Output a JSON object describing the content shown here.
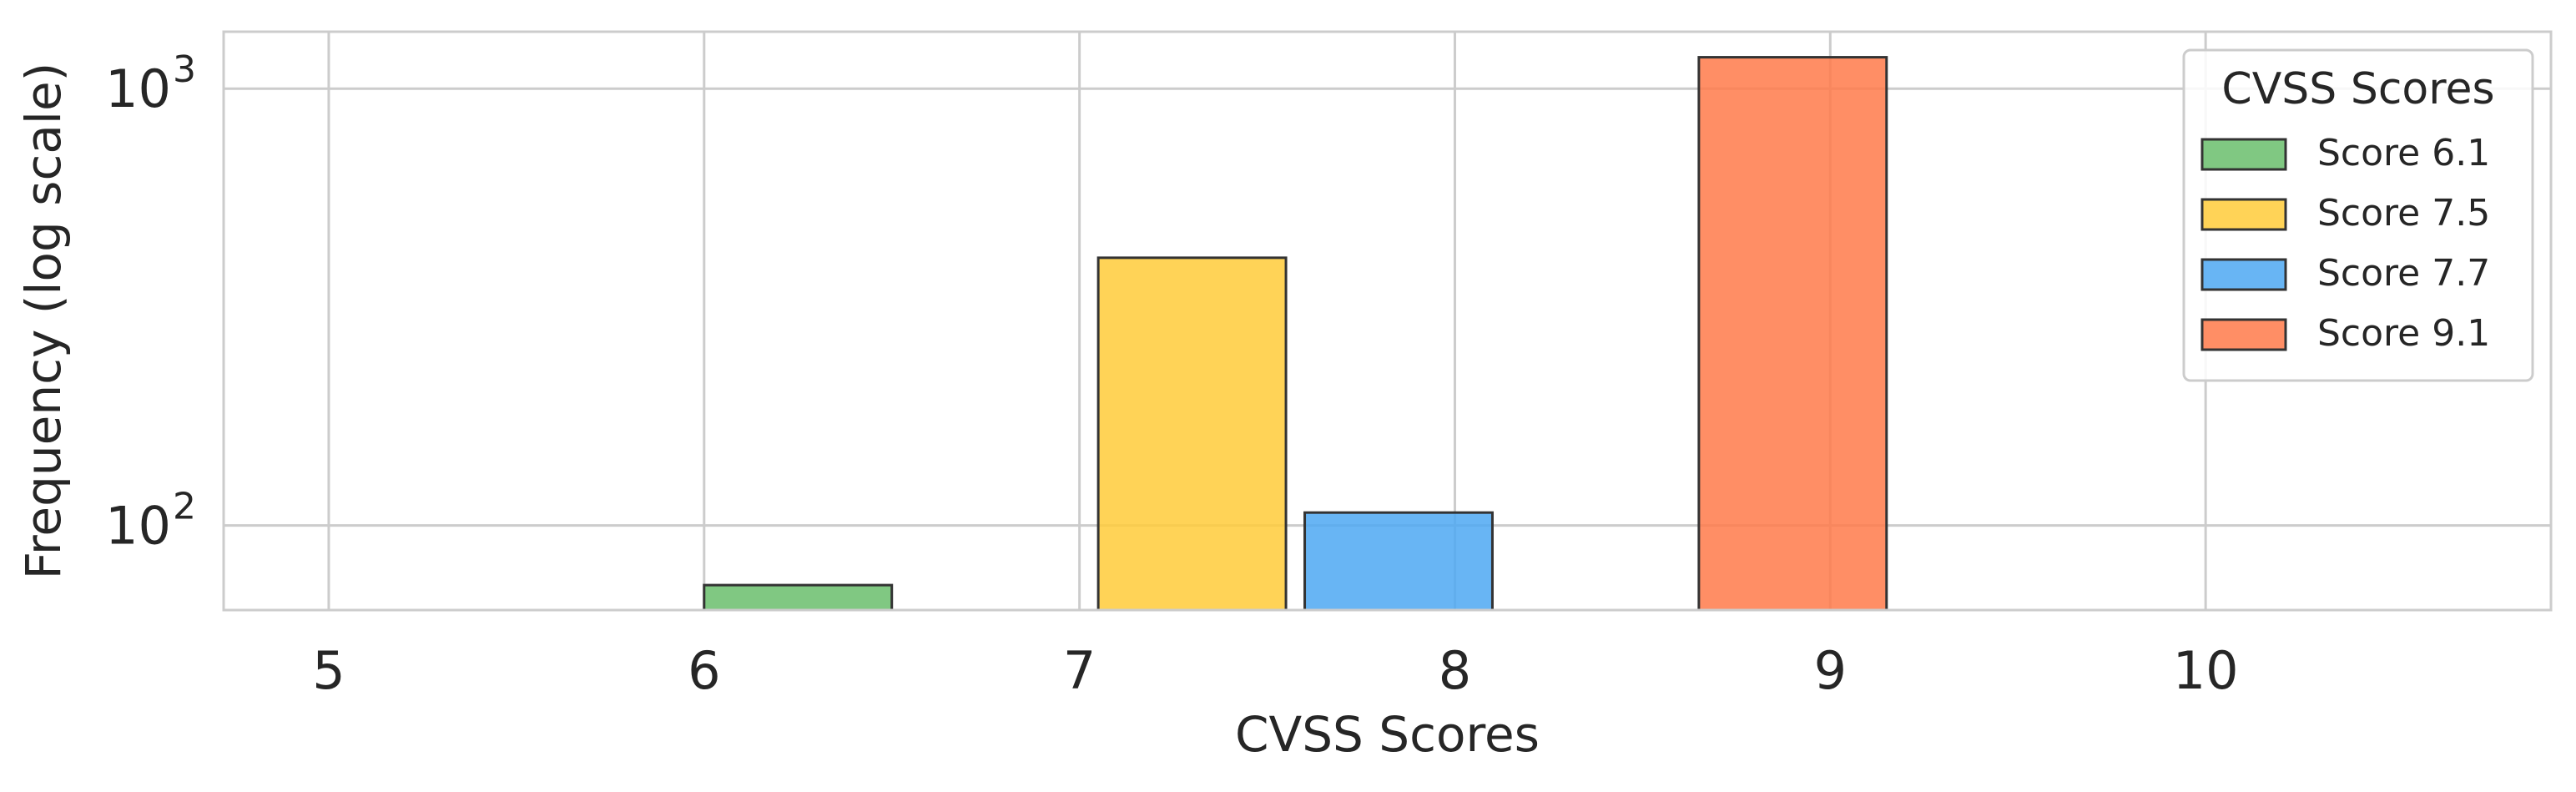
{
  "chart_data": {
    "type": "bar",
    "xlabel": "CVSS Scores",
    "ylabel": "Frequency (log scale)",
    "y_scale": "log",
    "xlim": [
      4.72,
      10.92
    ],
    "ylim": [
      64,
      1350
    ],
    "x_ticks": [
      "5",
      "6",
      "7",
      "8",
      "9",
      "10"
    ],
    "y_ticks": [
      {
        "value": 100,
        "base": "10",
        "exp": "2"
      },
      {
        "value": 1000,
        "base": "10",
        "exp": "3"
      }
    ],
    "grid": true,
    "series": [
      {
        "name": "Score 6.1",
        "x": 6.25,
        "value": 73,
        "color": "#6ABE6C"
      },
      {
        "name": "Score 7.5",
        "x": 7.3,
        "value": 410,
        "color": "#FFCB3A"
      },
      {
        "name": "Score 7.7",
        "x": 7.85,
        "value": 107,
        "color": "#4DA8F2"
      },
      {
        "name": "Score 9.1",
        "x": 8.9,
        "value": 1180,
        "color": "#FF7A4A"
      }
    ],
    "bar_width": 0.5,
    "legend": {
      "title": "CVSS Scores",
      "placement": "top-right"
    }
  }
}
